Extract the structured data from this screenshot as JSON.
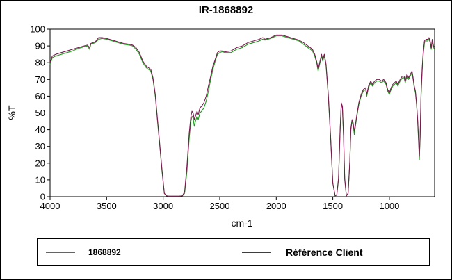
{
  "chart_data": {
    "type": "line",
    "title": "IR-1868892",
    "xlabel": "cm-1",
    "ylabel": "%T",
    "xlim": [
      4000,
      600
    ],
    "ylim": [
      0,
      100
    ],
    "x_reversed": true,
    "x_ticks": [
      4000,
      3500,
      3000,
      2500,
      2000,
      1500,
      1000
    ],
    "y_ticks": [
      0,
      10,
      20,
      30,
      40,
      50,
      60,
      70,
      80,
      90,
      100
    ],
    "grid": false,
    "legend_position": "bottom",
    "series": [
      {
        "name": "1868892",
        "color": "#1a9a1a",
        "points": [
          [
            4000,
            79
          ],
          [
            3980,
            83
          ],
          [
            3950,
            84
          ],
          [
            3900,
            85
          ],
          [
            3850,
            86
          ],
          [
            3800,
            87
          ],
          [
            3750,
            88.5
          ],
          [
            3700,
            89.5
          ],
          [
            3670,
            90
          ],
          [
            3650,
            88
          ],
          [
            3640,
            91
          ],
          [
            3600,
            92
          ],
          [
            3570,
            94
          ],
          [
            3540,
            94.5
          ],
          [
            3500,
            94
          ],
          [
            3450,
            93
          ],
          [
            3400,
            92
          ],
          [
            3350,
            91
          ],
          [
            3300,
            90.5
          ],
          [
            3270,
            90
          ],
          [
            3240,
            88
          ],
          [
            3210,
            85
          ],
          [
            3180,
            80
          ],
          [
            3150,
            77
          ],
          [
            3130,
            76
          ],
          [
            3110,
            75
          ],
          [
            3090,
            70
          ],
          [
            3070,
            60
          ],
          [
            3050,
            45
          ],
          [
            3030,
            30
          ],
          [
            3010,
            15
          ],
          [
            2990,
            2
          ],
          [
            2970,
            0.5
          ],
          [
            2950,
            0.3
          ],
          [
            2900,
            0.3
          ],
          [
            2860,
            0.3
          ],
          [
            2830,
            0.5
          ],
          [
            2810,
            2
          ],
          [
            2790,
            15
          ],
          [
            2770,
            35
          ],
          [
            2755,
            45
          ],
          [
            2745,
            48
          ],
          [
            2735,
            47
          ],
          [
            2725,
            42
          ],
          [
            2715,
            45
          ],
          [
            2700,
            48
          ],
          [
            2690,
            46
          ],
          [
            2675,
            50
          ],
          [
            2660,
            51
          ],
          [
            2640,
            53
          ],
          [
            2620,
            57
          ],
          [
            2600,
            63
          ],
          [
            2580,
            70
          ],
          [
            2560,
            76
          ],
          [
            2540,
            81
          ],
          [
            2520,
            85
          ],
          [
            2500,
            86
          ],
          [
            2480,
            86.5
          ],
          [
            2450,
            86
          ],
          [
            2400,
            86
          ],
          [
            2350,
            88
          ],
          [
            2300,
            89
          ],
          [
            2250,
            91
          ],
          [
            2200,
            92
          ],
          [
            2150,
            93
          ],
          [
            2120,
            94
          ],
          [
            2100,
            93.5
          ],
          [
            2050,
            94.5
          ],
          [
            2000,
            96
          ],
          [
            1950,
            96
          ],
          [
            1900,
            95
          ],
          [
            1850,
            94
          ],
          [
            1800,
            93
          ],
          [
            1760,
            91
          ],
          [
            1740,
            90
          ],
          [
            1720,
            89
          ],
          [
            1700,
            88
          ],
          [
            1680,
            87
          ],
          [
            1660,
            84
          ],
          [
            1640,
            79
          ],
          [
            1630,
            75
          ],
          [
            1620,
            78
          ],
          [
            1600,
            84
          ],
          [
            1590,
            81
          ],
          [
            1575,
            84
          ],
          [
            1560,
            78
          ],
          [
            1540,
            60
          ],
          [
            1520,
            35
          ],
          [
            1500,
            8
          ],
          [
            1480,
            0.5
          ],
          [
            1465,
            1
          ],
          [
            1450,
            10
          ],
          [
            1435,
            40
          ],
          [
            1425,
            55
          ],
          [
            1415,
            53
          ],
          [
            1405,
            35
          ],
          [
            1395,
            10
          ],
          [
            1380,
            0.5
          ],
          [
            1365,
            2
          ],
          [
            1350,
            20
          ],
          [
            1340,
            40
          ],
          [
            1330,
            45
          ],
          [
            1320,
            43
          ],
          [
            1310,
            37
          ],
          [
            1300,
            42
          ],
          [
            1290,
            47
          ],
          [
            1270,
            55
          ],
          [
            1250,
            60
          ],
          [
            1230,
            63
          ],
          [
            1210,
            64
          ],
          [
            1200,
            60
          ],
          [
            1185,
            65
          ],
          [
            1165,
            68
          ],
          [
            1150,
            66
          ],
          [
            1130,
            68
          ],
          [
            1110,
            69
          ],
          [
            1090,
            69
          ],
          [
            1070,
            68
          ],
          [
            1050,
            69
          ],
          [
            1030,
            67
          ],
          [
            1015,
            63
          ],
          [
            1000,
            61
          ],
          [
            985,
            64
          ],
          [
            970,
            66
          ],
          [
            955,
            67
          ],
          [
            940,
            68
          ],
          [
            925,
            66
          ],
          [
            905,
            69
          ],
          [
            885,
            71
          ],
          [
            870,
            71
          ],
          [
            860,
            68
          ],
          [
            845,
            72
          ],
          [
            830,
            70
          ],
          [
            815,
            72
          ],
          [
            800,
            74
          ],
          [
            790,
            70
          ],
          [
            780,
            65
          ],
          [
            770,
            62
          ],
          [
            760,
            55
          ],
          [
            750,
            45
          ],
          [
            740,
            30
          ],
          [
            735,
            22
          ],
          [
            728,
            35
          ],
          [
            720,
            60
          ],
          [
            710,
            75
          ],
          [
            700,
            85
          ],
          [
            690,
            92
          ],
          [
            675,
            93
          ],
          [
            660,
            93
          ],
          [
            650,
            94
          ],
          [
            640,
            92
          ],
          [
            630,
            88
          ],
          [
            620,
            93
          ],
          [
            610,
            89
          ],
          [
            600,
            88
          ]
        ]
      },
      {
        "name": "Référence Client",
        "color": "#7a1a50",
        "points": [
          [
            4000,
            80
          ],
          [
            3980,
            84
          ],
          [
            3950,
            85
          ],
          [
            3900,
            86
          ],
          [
            3850,
            87
          ],
          [
            3800,
            88
          ],
          [
            3750,
            89
          ],
          [
            3700,
            90
          ],
          [
            3670,
            90.5
          ],
          [
            3650,
            89
          ],
          [
            3640,
            91.5
          ],
          [
            3600,
            92.5
          ],
          [
            3570,
            95
          ],
          [
            3540,
            95
          ],
          [
            3500,
            94.5
          ],
          [
            3450,
            93.5
          ],
          [
            3400,
            92.5
          ],
          [
            3350,
            91.5
          ],
          [
            3300,
            91
          ],
          [
            3270,
            90.5
          ],
          [
            3240,
            89
          ],
          [
            3210,
            86
          ],
          [
            3180,
            81
          ],
          [
            3150,
            78
          ],
          [
            3130,
            77
          ],
          [
            3110,
            76
          ],
          [
            3090,
            71
          ],
          [
            3070,
            61
          ],
          [
            3050,
            46
          ],
          [
            3030,
            31
          ],
          [
            3010,
            16
          ],
          [
            2990,
            2
          ],
          [
            2970,
            0.5
          ],
          [
            2950,
            0.3
          ],
          [
            2900,
            0.3
          ],
          [
            2860,
            0.3
          ],
          [
            2830,
            0.5
          ],
          [
            2810,
            3
          ],
          [
            2790,
            18
          ],
          [
            2770,
            38
          ],
          [
            2755,
            48
          ],
          [
            2745,
            51
          ],
          [
            2735,
            50
          ],
          [
            2725,
            46
          ],
          [
            2715,
            48
          ],
          [
            2700,
            51
          ],
          [
            2690,
            49
          ],
          [
            2675,
            53
          ],
          [
            2660,
            54
          ],
          [
            2640,
            56
          ],
          [
            2620,
            60
          ],
          [
            2600,
            66
          ],
          [
            2580,
            72
          ],
          [
            2560,
            78
          ],
          [
            2540,
            82
          ],
          [
            2520,
            86
          ],
          [
            2500,
            87
          ],
          [
            2480,
            87
          ],
          [
            2450,
            86.5
          ],
          [
            2400,
            87
          ],
          [
            2350,
            89
          ],
          [
            2300,
            90
          ],
          [
            2250,
            92
          ],
          [
            2200,
            93
          ],
          [
            2150,
            94
          ],
          [
            2120,
            95
          ],
          [
            2100,
            94
          ],
          [
            2050,
            95
          ],
          [
            2000,
            96.5
          ],
          [
            1950,
            96.5
          ],
          [
            1900,
            95.5
          ],
          [
            1850,
            94.5
          ],
          [
            1800,
            93.5
          ],
          [
            1760,
            92
          ],
          [
            1740,
            91
          ],
          [
            1720,
            90
          ],
          [
            1700,
            89
          ],
          [
            1680,
            88
          ],
          [
            1660,
            85
          ],
          [
            1640,
            80
          ],
          [
            1630,
            76
          ],
          [
            1620,
            79
          ],
          [
            1600,
            85
          ],
          [
            1590,
            82
          ],
          [
            1575,
            85
          ],
          [
            1560,
            79
          ],
          [
            1540,
            61
          ],
          [
            1520,
            36
          ],
          [
            1500,
            8
          ],
          [
            1480,
            0.5
          ],
          [
            1465,
            1
          ],
          [
            1450,
            11
          ],
          [
            1435,
            41
          ],
          [
            1425,
            56
          ],
          [
            1415,
            54
          ],
          [
            1405,
            36
          ],
          [
            1395,
            11
          ],
          [
            1380,
            0.5
          ],
          [
            1365,
            2
          ],
          [
            1350,
            21
          ],
          [
            1340,
            41
          ],
          [
            1330,
            46
          ],
          [
            1320,
            44
          ],
          [
            1310,
            39
          ],
          [
            1300,
            43
          ],
          [
            1290,
            48
          ],
          [
            1270,
            56
          ],
          [
            1250,
            61
          ],
          [
            1230,
            64
          ],
          [
            1210,
            65
          ],
          [
            1200,
            61
          ],
          [
            1185,
            66
          ],
          [
            1165,
            69
          ],
          [
            1150,
            67
          ],
          [
            1130,
            69
          ],
          [
            1110,
            70
          ],
          [
            1090,
            70
          ],
          [
            1070,
            69
          ],
          [
            1050,
            70
          ],
          [
            1030,
            68
          ],
          [
            1015,
            64
          ],
          [
            1000,
            62
          ],
          [
            985,
            65
          ],
          [
            970,
            67
          ],
          [
            955,
            68
          ],
          [
            940,
            69
          ],
          [
            925,
            67
          ],
          [
            905,
            70
          ],
          [
            885,
            72
          ],
          [
            870,
            72
          ],
          [
            860,
            69
          ],
          [
            845,
            73
          ],
          [
            830,
            71
          ],
          [
            815,
            73
          ],
          [
            800,
            75
          ],
          [
            790,
            71
          ],
          [
            780,
            66
          ],
          [
            770,
            63
          ],
          [
            760,
            56
          ],
          [
            750,
            46
          ],
          [
            740,
            32
          ],
          [
            735,
            24
          ],
          [
            728,
            37
          ],
          [
            720,
            62
          ],
          [
            710,
            77
          ],
          [
            700,
            87
          ],
          [
            690,
            93
          ],
          [
            675,
            94
          ],
          [
            660,
            94
          ],
          [
            650,
            95
          ],
          [
            640,
            93
          ],
          [
            630,
            89
          ],
          [
            620,
            94
          ],
          [
            610,
            90
          ],
          [
            600,
            89
          ]
        ]
      }
    ]
  }
}
